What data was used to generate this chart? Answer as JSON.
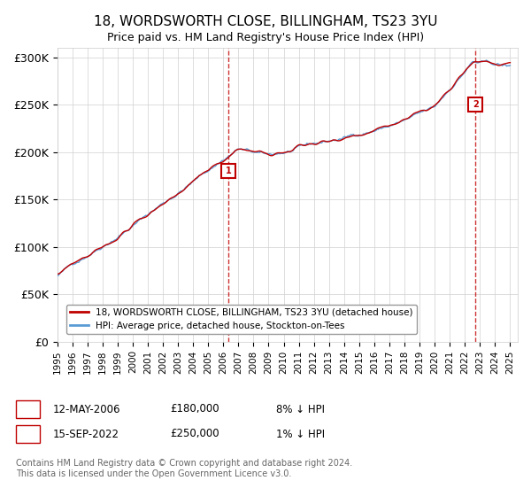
{
  "title": "18, WORDSWORTH CLOSE, BILLINGHAM, TS23 3YU",
  "subtitle": "Price paid vs. HM Land Registry's House Price Index (HPI)",
  "xlabel": "",
  "ylabel": "",
  "ylim": [
    0,
    310000
  ],
  "yticks": [
    0,
    50000,
    100000,
    150000,
    200000,
    250000,
    300000
  ],
  "ytick_labels": [
    "£0",
    "£50K",
    "£100K",
    "£150K",
    "£200K",
    "£250K",
    "£300K"
  ],
  "hpi_color": "#5b9bd5",
  "price_color": "#c00000",
  "marker1_color": "#c00000",
  "marker2_color": "#c00000",
  "vline_color": "#c00000",
  "vline2_color": "#c00000",
  "background_color": "#ffffff",
  "grid_color": "#d0d0d0",
  "legend_box_color": "#000000",
  "sale1_date_num": 2006.36,
  "sale1_price": 180000,
  "sale2_date_num": 2022.71,
  "sale2_price": 250000,
  "sale1_label": "1",
  "sale2_label": "2",
  "legend_line1": "18, WORDSWORTH CLOSE, BILLINGHAM, TS23 3YU (detached house)",
  "legend_line2": "HPI: Average price, detached house, Stockton-on-Tees",
  "footnote1": "1     12-MAY-2006          £180,000          8% ↓ HPI",
  "footnote2": "2     15-SEP-2022          £250,000          1% ↓ HPI",
  "copyright": "Contains HM Land Registry data © Crown copyright and database right 2024.\nThis data is licensed under the Open Government Licence v3.0.",
  "xstart": 1995.0,
  "xend": 2025.5
}
